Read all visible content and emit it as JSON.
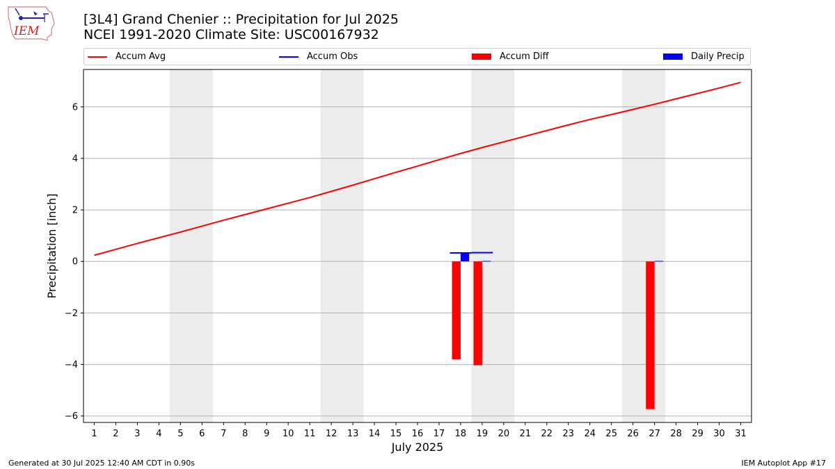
{
  "header": {
    "title_line1": "[3L4] Grand Chenier :: Precipitation for Jul 2025",
    "title_line2": "NCEI 1991-2020 Climate Site: USC00167932",
    "logo_text": "IEM"
  },
  "legend": {
    "items": [
      {
        "label": "Accum Avg",
        "kind": "line",
        "color": "#ff0000"
      },
      {
        "label": "Accum Obs",
        "kind": "line",
        "color": "#0000ff"
      },
      {
        "label": "Accum Diff",
        "kind": "bar",
        "color": "#ff0000"
      },
      {
        "label": "Daily Precip",
        "kind": "bar",
        "color": "#0000ff"
      }
    ]
  },
  "footer": {
    "left": "Generated at 30 Jul 2025 12:40 AM CDT in 0.90s",
    "right": "IEM Autoplot App #17"
  },
  "chart_data": {
    "type": "bar",
    "title": "[3L4] Grand Chenier :: Precipitation for Jul 2025",
    "subtitle": "NCEI 1991-2020 Climate Site: USC00167932",
    "xlabel": "July 2025",
    "ylabel": "Precipitation [inch]",
    "xlim": [
      0.5,
      31.5
    ],
    "ylim": [
      -6.25,
      7.45
    ],
    "yticks": [
      -6,
      -4,
      -2,
      0,
      2,
      4,
      6
    ],
    "ytick_labels": [
      "−6",
      "−4",
      "−2",
      "0",
      "2",
      "4",
      "6"
    ],
    "xticks": [
      1,
      2,
      3,
      4,
      5,
      6,
      7,
      8,
      9,
      10,
      11,
      12,
      13,
      14,
      15,
      16,
      17,
      18,
      19,
      20,
      21,
      22,
      23,
      24,
      25,
      26,
      27,
      28,
      29,
      30,
      31
    ],
    "xtick_labels": [
      "1",
      "2",
      "3",
      "4",
      "5",
      "6",
      "7",
      "8",
      "9",
      "10",
      "11",
      "12",
      "13",
      "14",
      "15",
      "16",
      "17",
      "18",
      "19",
      "20",
      "21",
      "22",
      "23",
      "24",
      "25",
      "26",
      "27",
      "28",
      "29",
      "30",
      "31"
    ],
    "grid": "y",
    "legend_position": "top",
    "weekend_shading": [
      [
        4.5,
        6.5
      ],
      [
        11.5,
        13.5
      ],
      [
        18.5,
        20.5
      ],
      [
        25.5,
        27.5
      ]
    ],
    "series": [
      {
        "name": "Accum Avg",
        "type": "line",
        "color": "#ff0000",
        "x": [
          1,
          2,
          3,
          4,
          5,
          6,
          7,
          8,
          9,
          10,
          11,
          12,
          13,
          14,
          15,
          16,
          17,
          18,
          19,
          20,
          21,
          22,
          23,
          24,
          25,
          26,
          27,
          28,
          29,
          30,
          31
        ],
        "values": [
          0.24,
          0.47,
          0.7,
          0.92,
          1.14,
          1.37,
          1.6,
          1.82,
          2.04,
          2.26,
          2.48,
          2.72,
          2.96,
          3.21,
          3.46,
          3.7,
          3.95,
          4.19,
          4.42,
          4.64,
          4.86,
          5.08,
          5.3,
          5.51,
          5.7,
          5.9,
          6.1,
          6.31,
          6.52,
          6.73,
          6.95
        ]
      },
      {
        "name": "Accum Obs",
        "type": "line",
        "color": "#0000ff",
        "x": [
          18,
          19
        ],
        "values": [
          0.33,
          0.34
        ]
      },
      {
        "name": "Accum Diff",
        "type": "bar",
        "color": "#ff0000",
        "x": [
          17.8,
          18.8,
          26.8
        ],
        "values": [
          -3.8,
          -4.03,
          -5.73
        ]
      },
      {
        "name": "Daily Precip",
        "type": "bar",
        "color": "#0000ff",
        "x": [
          18.2,
          19.2,
          27.2
        ],
        "values": [
          0.33,
          0.02,
          0.02
        ]
      }
    ]
  }
}
